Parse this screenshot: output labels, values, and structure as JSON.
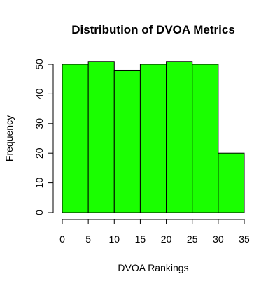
{
  "colors": {
    "bar_fill": "#1aff00",
    "bar_stroke": "#000000"
  },
  "chart_data": {
    "type": "bar",
    "title": "Distribution of DVOA Metrics",
    "xlabel": "DVOA Rankings",
    "ylabel": "Frequency",
    "bins": [
      {
        "start": 0,
        "end": 5,
        "value": 50
      },
      {
        "start": 5,
        "end": 10,
        "value": 51
      },
      {
        "start": 10,
        "end": 15,
        "value": 48
      },
      {
        "start": 15,
        "end": 20,
        "value": 50
      },
      {
        "start": 20,
        "end": 25,
        "value": 51
      },
      {
        "start": 25,
        "end": 30,
        "value": 50
      },
      {
        "start": 30,
        "end": 35,
        "value": 20
      }
    ],
    "xlim": [
      0,
      35
    ],
    "ylim": [
      0,
      50
    ],
    "x_ticks": [
      "0",
      "5",
      "10",
      "15",
      "20",
      "25",
      "30",
      "35"
    ],
    "y_ticks": [
      "0",
      "10",
      "20",
      "30",
      "40",
      "50"
    ],
    "grid": false,
    "legend": "none"
  }
}
